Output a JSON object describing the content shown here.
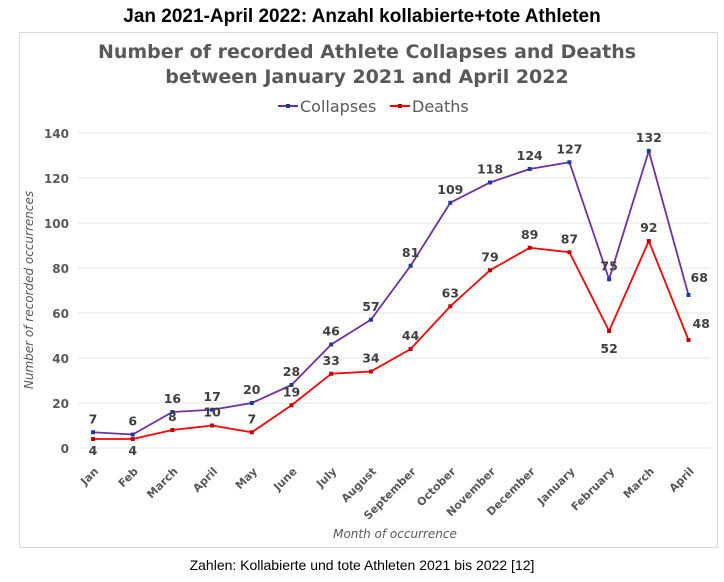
{
  "page": {
    "heading": "Jan 2021-April 2022: Anzahl kollabierte+tote Athleten",
    "caption": "Zahlen: Kollabierte und tote Athleten 2021 bis 2022 [12]"
  },
  "chart_data": {
    "type": "line",
    "title_line1": "Number of recorded Athlete Collapses and Deaths",
    "title_line2": "between January 2021 and April 2022",
    "xlabel": "Month of occurrence",
    "ylabel": "Number of recorded occurrences",
    "ylim": [
      0,
      140
    ],
    "yticks": [
      0,
      20,
      40,
      60,
      80,
      100,
      120,
      140
    ],
    "grid": true,
    "legend_placement": "top-center",
    "categories": [
      "Jan",
      "Feb",
      "March",
      "April",
      "May",
      "June",
      "July",
      "August",
      "September",
      "October",
      "November",
      "December",
      "January",
      "February",
      "March",
      "April"
    ],
    "series": [
      {
        "name": "Collapses",
        "color": "#7030a0",
        "marker_color": "#1f3c99",
        "values": [
          7,
          6,
          16,
          17,
          20,
          28,
          46,
          57,
          81,
          109,
          118,
          124,
          127,
          75,
          132,
          68
        ]
      },
      {
        "name": "Deaths",
        "color": "#ff0000",
        "marker_color": "#c00000",
        "values": [
          4,
          4,
          8,
          10,
          7,
          19,
          33,
          34,
          44,
          63,
          79,
          89,
          87,
          52,
          92,
          48
        ]
      }
    ]
  }
}
